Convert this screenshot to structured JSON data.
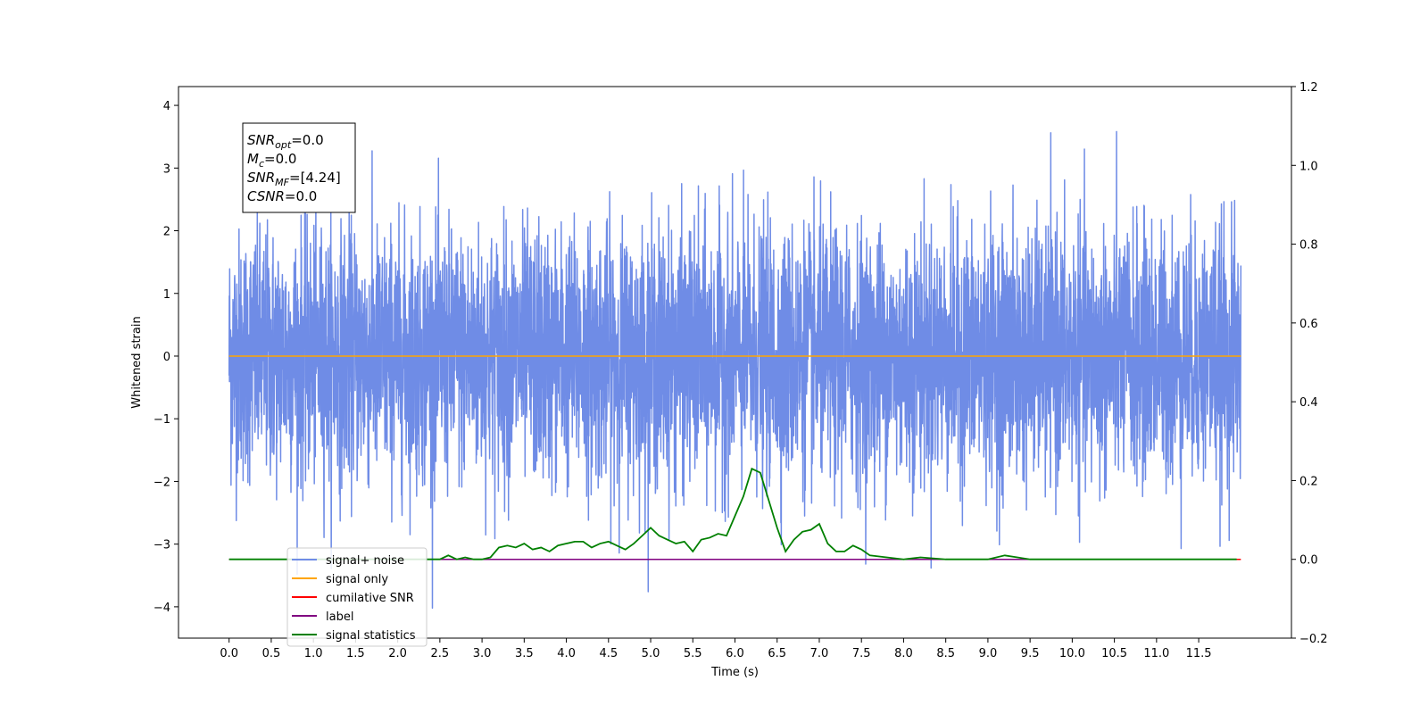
{
  "chart_data": {
    "type": "line",
    "title": "",
    "xlabel": "Time (s)",
    "ylabel": "Whitened strain",
    "xlim": [
      -0.6,
      12.6
    ],
    "ylim": [
      -4.5,
      4.3
    ],
    "y2lim": [
      -0.2,
      1.2
    ],
    "x_ticks": [
      0.0,
      0.5,
      1.0,
      1.5,
      2.0,
      2.5,
      3.0,
      3.5,
      4.0,
      4.5,
      5.0,
      5.5,
      6.0,
      6.5,
      7.0,
      7.5,
      8.0,
      8.5,
      9.0,
      9.5,
      10.0,
      10.5,
      11.0,
      11.5
    ],
    "x_tick_labels": [
      "0.0",
      "0.5",
      "1.0",
      "1.5",
      "2.0",
      "2.5",
      "3.0",
      "3.5",
      "4.0",
      "4.5",
      "5.0",
      "5.5",
      "6.0",
      "6.5",
      "7.0",
      "7.5",
      "8.0",
      "8.5",
      "9.0",
      "9.5",
      "10.0",
      "10.5",
      "11.0",
      "11.5"
    ],
    "y_ticks": [
      -4,
      -3,
      -2,
      -1,
      0,
      1,
      2,
      3,
      4
    ],
    "y_tick_labels": [
      "−4",
      "−3",
      "−2",
      "−1",
      "0",
      "1",
      "2",
      "3",
      "4"
    ],
    "y2_ticks": [
      -0.2,
      0.0,
      0.2,
      0.4,
      0.6,
      0.8,
      1.0,
      1.2
    ],
    "y2_tick_labels": [
      "−0.2",
      "0.0",
      "0.2",
      "0.4",
      "0.6",
      "0.8",
      "1.0",
      "1.2"
    ],
    "grid": false,
    "legend_placement": "lower-left",
    "annotation": {
      "lines": [
        {
          "base": "SNR",
          "sub": "opt",
          "rest": "=0.0"
        },
        {
          "base": "M",
          "sub": "c",
          "rest": "=0.0"
        },
        {
          "base": "SNR",
          "sub": "MF",
          "rest": "=[4.24]"
        },
        {
          "base": "CSNR",
          "sub": "",
          "rest": "=0.0"
        }
      ]
    },
    "series": [
      {
        "name": "signal+ noise",
        "color": "#6f8ce6",
        "axis": "left",
        "description": "noise",
        "x_range": [
          0.0,
          12.0
        ],
        "amplitude_sd": 1.0
      },
      {
        "name": "signal only",
        "color": "#ffa500",
        "axis": "left",
        "x": [
          0.0,
          12.0
        ],
        "values": [
          0.0,
          0.0
        ]
      },
      {
        "name": "cumilative SNR",
        "color": "#ff0000",
        "axis": "right",
        "x": [
          0.0,
          12.0
        ],
        "values": [
          0.0,
          0.0
        ]
      },
      {
        "name": "label",
        "color": "#800080",
        "axis": "right",
        "x": [
          0.0,
          11.95
        ],
        "values": [
          0.0,
          0.0
        ]
      },
      {
        "name": "signal statistics",
        "color": "#008000",
        "axis": "right",
        "x": [
          0.0,
          0.5,
          1.0,
          1.5,
          2.0,
          2.5,
          2.6,
          2.7,
          2.8,
          2.9,
          3.0,
          3.1,
          3.2,
          3.3,
          3.4,
          3.5,
          3.6,
          3.7,
          3.8,
          3.9,
          4.0,
          4.1,
          4.2,
          4.3,
          4.4,
          4.5,
          4.6,
          4.7,
          4.8,
          4.9,
          5.0,
          5.1,
          5.2,
          5.3,
          5.4,
          5.5,
          5.6,
          5.7,
          5.8,
          5.9,
          6.0,
          6.1,
          6.2,
          6.3,
          6.4,
          6.5,
          6.6,
          6.7,
          6.8,
          6.9,
          7.0,
          7.1,
          7.2,
          7.3,
          7.4,
          7.5,
          7.6,
          7.8,
          8.0,
          8.2,
          8.5,
          9.0,
          9.2,
          9.5,
          10.0,
          10.5,
          11.0,
          11.5,
          11.95
        ],
        "values": [
          0.0,
          0.0,
          0.0,
          0.0,
          0.0,
          0.0,
          0.01,
          0.0,
          0.005,
          0.0,
          0.0,
          0.005,
          0.03,
          0.035,
          0.03,
          0.04,
          0.025,
          0.03,
          0.02,
          0.035,
          0.04,
          0.045,
          0.045,
          0.03,
          0.04,
          0.045,
          0.035,
          0.025,
          0.04,
          0.06,
          0.08,
          0.06,
          0.05,
          0.04,
          0.045,
          0.02,
          0.05,
          0.055,
          0.065,
          0.06,
          0.11,
          0.16,
          0.23,
          0.22,
          0.15,
          0.08,
          0.02,
          0.05,
          0.07,
          0.075,
          0.09,
          0.04,
          0.02,
          0.02,
          0.035,
          0.025,
          0.01,
          0.005,
          0.0,
          0.005,
          0.0,
          0.0,
          0.01,
          0.0,
          0.0,
          0.0,
          0.0,
          0.0,
          0.0
        ]
      }
    ]
  }
}
